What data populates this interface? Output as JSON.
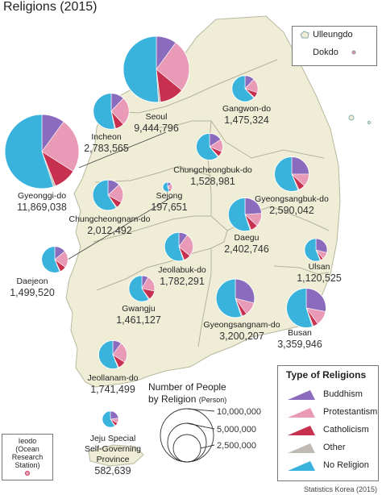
{
  "title": "Religions (2015)",
  "source": "Statistics Korea (2015)",
  "colors": {
    "land": "#efedd6",
    "land_stroke": "#b7b89f",
    "sea": "#ffffff",
    "buddhism": "#8a6bbd",
    "protestantism": "#e99ab6",
    "catholicism": "#c8304f",
    "other": "#bfbbb4",
    "no_religion": "#3ab3dc"
  },
  "islands": {
    "ulleungdo": "Ulleungdo",
    "dokdo": "Dokdo"
  },
  "ieodo": {
    "line1": "Ieodo",
    "line2": "(Ocean Research",
    "line3": "Station)"
  },
  "size_legend": {
    "title_line1": "Number of People",
    "title_line2": "by Religion",
    "unit": "(Person)",
    "values": [
      "10,000,000",
      "5,000,000",
      "2,500,000"
    ]
  },
  "legend": {
    "title": "Type of Religions",
    "items": [
      {
        "key": "buddhism",
        "label": "Buddhism"
      },
      {
        "key": "protestantism",
        "label": "Protestantism"
      },
      {
        "key": "catholicism",
        "label": "Catholicism"
      },
      {
        "key": "other",
        "label": "Other"
      },
      {
        "key": "no_religion",
        "label": "No Religion"
      }
    ]
  },
  "regions": [
    {
      "id": "seoul",
      "name": "Seoul",
      "value": "9,444,796",
      "total": 9444796,
      "shares": [
        0.1,
        0.26,
        0.12,
        0.01,
        0.51
      ]
    },
    {
      "id": "gangwon",
      "name": "Gangwon-do",
      "value": "1,475,324",
      "total": 1475324,
      "shares": [
        0.12,
        0.18,
        0.07,
        0.01,
        0.62
      ]
    },
    {
      "id": "incheon",
      "name": "Incheon",
      "value": "2,783,565",
      "total": 2783565,
      "shares": [
        0.12,
        0.26,
        0.08,
        0.01,
        0.53
      ]
    },
    {
      "id": "gyeonggi",
      "name": "Gyeonggi-do",
      "value": "11,869,038",
      "total": 11869038,
      "shares": [
        0.1,
        0.24,
        0.1,
        0.01,
        0.55
      ]
    },
    {
      "id": "chungbuk",
      "name": "Chungcheongbuk-do",
      "value": "1,528,981",
      "total": 1528981,
      "shares": [
        0.16,
        0.15,
        0.07,
        0.01,
        0.61
      ]
    },
    {
      "id": "sejong",
      "name": "Sejong",
      "value": "197,651",
      "total": 197651,
      "shares": [
        0.14,
        0.22,
        0.07,
        0.01,
        0.56
      ]
    },
    {
      "id": "chungnam",
      "name": "Chungcheongnam-do",
      "value": "2,012,492",
      "total": 2012492,
      "shares": [
        0.13,
        0.2,
        0.07,
        0.01,
        0.59
      ]
    },
    {
      "id": "gyeongbuk",
      "name": "Gyeongsangbuk-do",
      "value": "2,590,042",
      "total": 2590042,
      "shares": [
        0.25,
        0.12,
        0.06,
        0.01,
        0.56
      ]
    },
    {
      "id": "daejeon",
      "name": "Daejeon",
      "value": "1,499,520",
      "total": 1499520,
      "shares": [
        0.14,
        0.21,
        0.08,
        0.01,
        0.56
      ]
    },
    {
      "id": "daegu",
      "name": "Daegu",
      "value": "2,402,746",
      "total": 2402746,
      "shares": [
        0.24,
        0.13,
        0.07,
        0.01,
        0.55
      ]
    },
    {
      "id": "jeonbuk",
      "name": "Jeollabuk-do",
      "value": "1,782,291",
      "total": 1782291,
      "shares": [
        0.1,
        0.26,
        0.08,
        0.01,
        0.55
      ]
    },
    {
      "id": "ulsan",
      "name": "Ulsan",
      "value": "1,120,525",
      "total": 1120525,
      "shares": [
        0.29,
        0.1,
        0.04,
        0.01,
        0.56
      ]
    },
    {
      "id": "gwangju",
      "name": "Gwangju",
      "value": "1,461,127",
      "total": 1461127,
      "shares": [
        0.08,
        0.2,
        0.12,
        0.01,
        0.59
      ]
    },
    {
      "id": "gyeongnam",
      "name": "Gyeongsangnam-do",
      "value": "3,200,207",
      "total": 3200207,
      "shares": [
        0.29,
        0.11,
        0.04,
        0.01,
        0.55
      ]
    },
    {
      "id": "busan",
      "name": "Busan",
      "value": "3,359,946",
      "total": 3359946,
      "shares": [
        0.28,
        0.12,
        0.04,
        0.01,
        0.55
      ]
    },
    {
      "id": "jeonnam",
      "name": "Jeollanam-do",
      "value": "1,741,499",
      "total": 1741499,
      "shares": [
        0.1,
        0.24,
        0.09,
        0.01,
        0.56
      ]
    },
    {
      "id": "jeju",
      "name": "Jeju Special\nSelf-Governing\nProvince",
      "value": "582,639",
      "total": 582639,
      "shares": [
        0.23,
        0.1,
        0.07,
        0.01,
        0.59
      ]
    }
  ]
}
